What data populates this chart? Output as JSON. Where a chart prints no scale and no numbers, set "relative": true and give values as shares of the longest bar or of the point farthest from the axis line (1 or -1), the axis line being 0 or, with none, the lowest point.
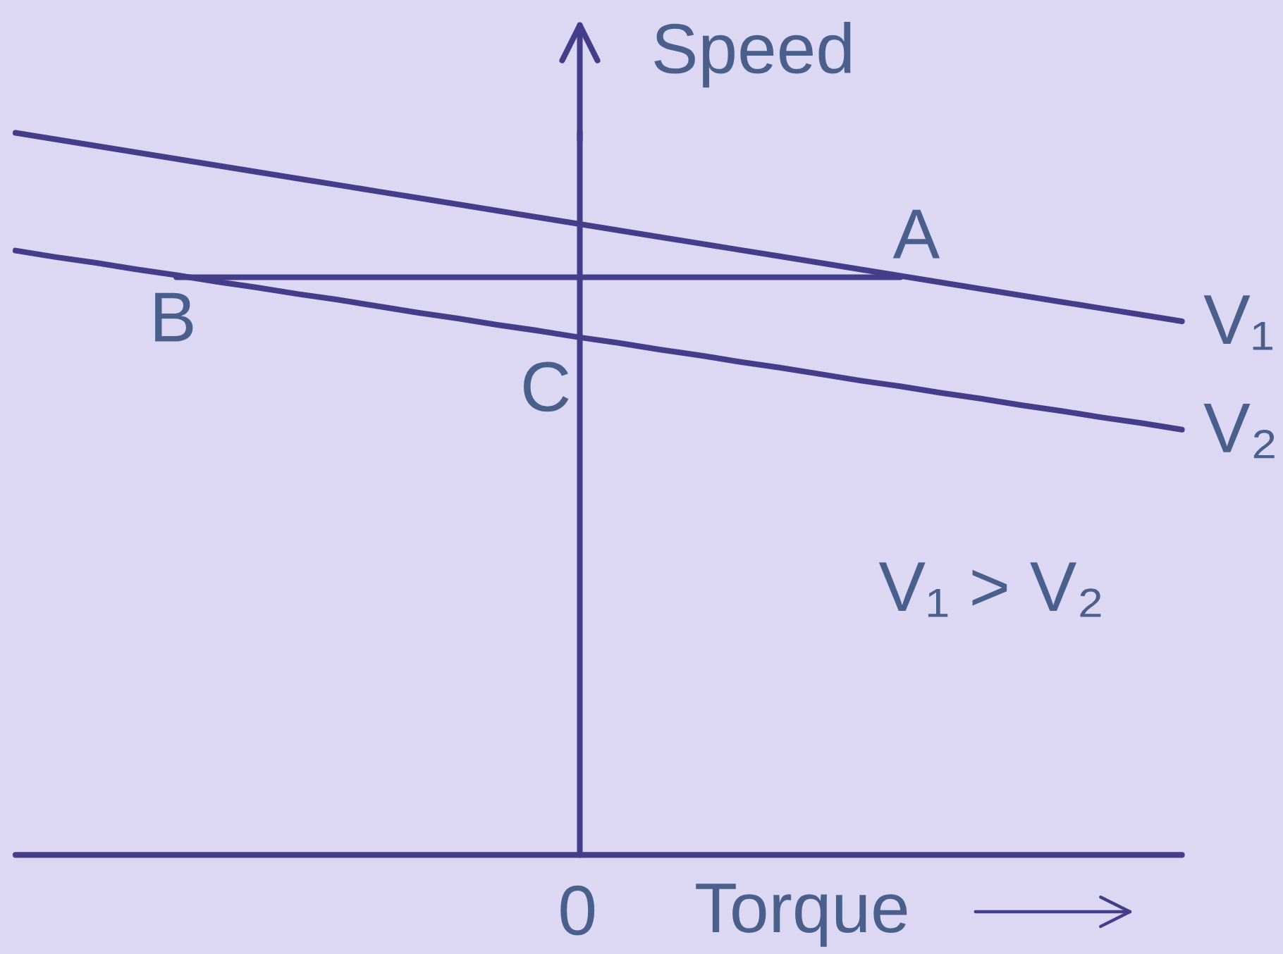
{
  "chart_data": {
    "type": "line",
    "relative": true,
    "xlabel": "Torque",
    "ylabel": "Speed",
    "categories": [
      null,
      null,
      null,
      null,
      null,
      null,
      null,
      null,
      null,
      null,
      null,
      null,
      null,
      null,
      null,
      null,
      null,
      null,
      null,
      null,
      null,
      null,
      null,
      null,
      null,
      null,
      null,
      null,
      null,
      null
    ],
    "series": [
      {
        "name": "V₁",
        "color": "#433d8a",
        "values": [
          1,
          0.991,
          0.982,
          0.973,
          0.964,
          0.955,
          0.946,
          0.937,
          0.928,
          0.919,
          0.91,
          0.901,
          0.892,
          0.883,
          0.874,
          0.865,
          0.856,
          0.847,
          0.838,
          0.829,
          0.82,
          0.811,
          0.802,
          0.793,
          0.784,
          0.775,
          0.766,
          0.757,
          0.748,
          0.739
        ]
      },
      {
        "name": "V₂",
        "color": "#433d8a",
        "values": [
          0.837,
          0.828,
          0.82,
          0.811,
          0.803,
          0.794,
          0.786,
          0.777,
          0.769,
          0.76,
          0.751,
          0.743,
          0.734,
          0.726,
          0.717,
          0.709,
          0.7,
          0.692,
          0.683,
          0.675,
          0.666,
          0.657,
          0.649,
          0.64,
          0.632,
          0.623,
          0.615,
          0.606,
          0.598,
          0.589
        ]
      },
      {
        "color": "#433d8a",
        "values": [
          null,
          null,
          null,
          null,
          0.8,
          0.8,
          0.8,
          0.8,
          0.8,
          0.8,
          0.8,
          0.8,
          0.8,
          0.8,
          0.8,
          0.8,
          0.8,
          0.8,
          0.8,
          0.8,
          0.8,
          0.8,
          0.8,
          null,
          null,
          null,
          null,
          null,
          null,
          null
        ]
      }
    ],
    "ref_lines": [
      {
        "axis": "y",
        "value": 0,
        "color": "#433d8a",
        "line_style": "solid"
      }
    ],
    "annotations": [
      "A",
      "B",
      "C",
      "0",
      "V₁ > V₂"
    ]
  }
}
